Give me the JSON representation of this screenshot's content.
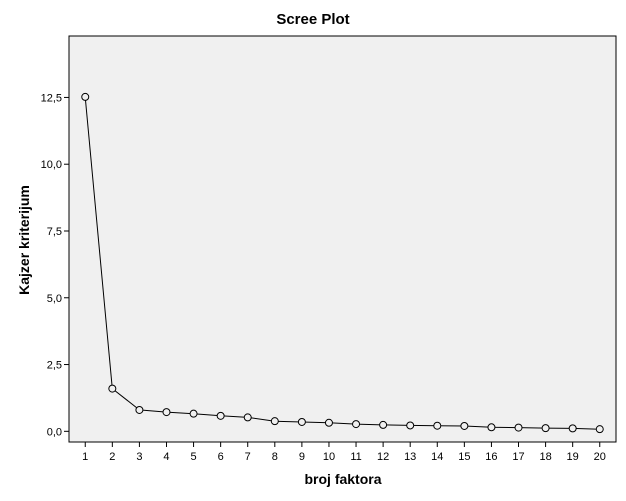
{
  "chart_data": {
    "type": "line",
    "title": "Scree Plot",
    "xlabel": "broj faktora",
    "ylabel": "Kajzer kriterijum",
    "x": [
      1,
      2,
      3,
      4,
      5,
      6,
      7,
      8,
      9,
      10,
      11,
      12,
      13,
      14,
      15,
      16,
      17,
      18,
      19,
      20
    ],
    "series": [
      {
        "values": [
          12.52,
          1.6,
          0.8,
          0.72,
          0.66,
          0.58,
          0.52,
          0.38,
          0.35,
          0.32,
          0.27,
          0.24,
          0.22,
          0.21,
          0.2,
          0.15,
          0.14,
          0.12,
          0.11,
          0.08
        ]
      }
    ],
    "yticks": [
      "0,0",
      "2,5",
      "5,0",
      "7,5",
      "10,0",
      "12,5"
    ],
    "ytick_values": [
      0,
      2.5,
      5,
      7.5,
      10,
      12.5
    ],
    "xticks": [
      "1",
      "2",
      "3",
      "4",
      "5",
      "6",
      "7",
      "8",
      "9",
      "10",
      "11",
      "12",
      "13",
      "14",
      "15",
      "16",
      "17",
      "18",
      "19",
      "20"
    ],
    "ylim": [
      -0.4,
      14.8
    ],
    "xlim": [
      0.4,
      20.6
    ],
    "marker": "open-circle",
    "grid": false,
    "plot_background": "#f0f0f0",
    "line_color": "#000000"
  }
}
